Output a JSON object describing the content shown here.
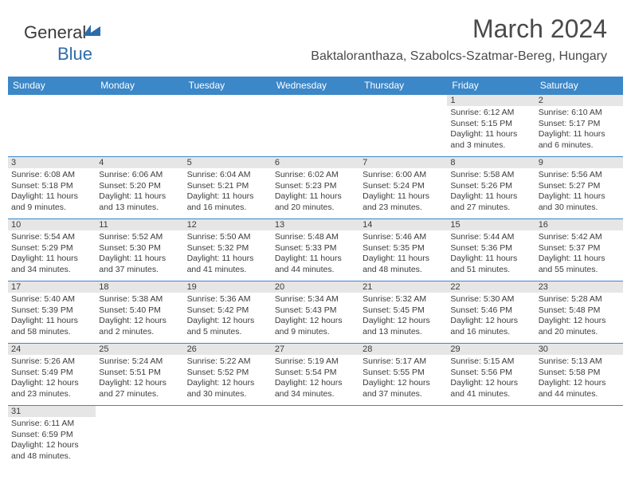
{
  "brand": {
    "part1": "General",
    "part2": "Blue"
  },
  "title": "March 2024",
  "location": "Baktaloranthaza, Szabolcs-Szatmar-Bereg, Hungary",
  "colors": {
    "header_bg": "#3b87c8",
    "header_text": "#ffffff",
    "cell_border": "#3b87c8",
    "daynum_bg": "#e6e6e6",
    "text": "#3c3c3c",
    "title_text": "#4a4a4a",
    "logo_blue": "#2d6ca8"
  },
  "typography": {
    "title_fontsize": 32,
    "location_fontsize": 16,
    "dayheader_fontsize": 12,
    "daynum_fontsize": 11,
    "body_fontsize": 10.5,
    "logo_fontsize": 22
  },
  "day_headers": [
    "Sunday",
    "Monday",
    "Tuesday",
    "Wednesday",
    "Thursday",
    "Friday",
    "Saturday"
  ],
  "weeks": [
    [
      {
        "num": "",
        "lines": []
      },
      {
        "num": "",
        "lines": []
      },
      {
        "num": "",
        "lines": []
      },
      {
        "num": "",
        "lines": []
      },
      {
        "num": "",
        "lines": []
      },
      {
        "num": "1",
        "lines": [
          "Sunrise: 6:12 AM",
          "Sunset: 5:15 PM",
          "Daylight: 11 hours and 3 minutes."
        ]
      },
      {
        "num": "2",
        "lines": [
          "Sunrise: 6:10 AM",
          "Sunset: 5:17 PM",
          "Daylight: 11 hours and 6 minutes."
        ]
      }
    ],
    [
      {
        "num": "3",
        "lines": [
          "Sunrise: 6:08 AM",
          "Sunset: 5:18 PM",
          "Daylight: 11 hours and 9 minutes."
        ]
      },
      {
        "num": "4",
        "lines": [
          "Sunrise: 6:06 AM",
          "Sunset: 5:20 PM",
          "Daylight: 11 hours and 13 minutes."
        ]
      },
      {
        "num": "5",
        "lines": [
          "Sunrise: 6:04 AM",
          "Sunset: 5:21 PM",
          "Daylight: 11 hours and 16 minutes."
        ]
      },
      {
        "num": "6",
        "lines": [
          "Sunrise: 6:02 AM",
          "Sunset: 5:23 PM",
          "Daylight: 11 hours and 20 minutes."
        ]
      },
      {
        "num": "7",
        "lines": [
          "Sunrise: 6:00 AM",
          "Sunset: 5:24 PM",
          "Daylight: 11 hours and 23 minutes."
        ]
      },
      {
        "num": "8",
        "lines": [
          "Sunrise: 5:58 AM",
          "Sunset: 5:26 PM",
          "Daylight: 11 hours and 27 minutes."
        ]
      },
      {
        "num": "9",
        "lines": [
          "Sunrise: 5:56 AM",
          "Sunset: 5:27 PM",
          "Daylight: 11 hours and 30 minutes."
        ]
      }
    ],
    [
      {
        "num": "10",
        "lines": [
          "Sunrise: 5:54 AM",
          "Sunset: 5:29 PM",
          "Daylight: 11 hours and 34 minutes."
        ]
      },
      {
        "num": "11",
        "lines": [
          "Sunrise: 5:52 AM",
          "Sunset: 5:30 PM",
          "Daylight: 11 hours and 37 minutes."
        ]
      },
      {
        "num": "12",
        "lines": [
          "Sunrise: 5:50 AM",
          "Sunset: 5:32 PM",
          "Daylight: 11 hours and 41 minutes."
        ]
      },
      {
        "num": "13",
        "lines": [
          "Sunrise: 5:48 AM",
          "Sunset: 5:33 PM",
          "Daylight: 11 hours and 44 minutes."
        ]
      },
      {
        "num": "14",
        "lines": [
          "Sunrise: 5:46 AM",
          "Sunset: 5:35 PM",
          "Daylight: 11 hours and 48 minutes."
        ]
      },
      {
        "num": "15",
        "lines": [
          "Sunrise: 5:44 AM",
          "Sunset: 5:36 PM",
          "Daylight: 11 hours and 51 minutes."
        ]
      },
      {
        "num": "16",
        "lines": [
          "Sunrise: 5:42 AM",
          "Sunset: 5:37 PM",
          "Daylight: 11 hours and 55 minutes."
        ]
      }
    ],
    [
      {
        "num": "17",
        "lines": [
          "Sunrise: 5:40 AM",
          "Sunset: 5:39 PM",
          "Daylight: 11 hours and 58 minutes."
        ]
      },
      {
        "num": "18",
        "lines": [
          "Sunrise: 5:38 AM",
          "Sunset: 5:40 PM",
          "Daylight: 12 hours and 2 minutes."
        ]
      },
      {
        "num": "19",
        "lines": [
          "Sunrise: 5:36 AM",
          "Sunset: 5:42 PM",
          "Daylight: 12 hours and 5 minutes."
        ]
      },
      {
        "num": "20",
        "lines": [
          "Sunrise: 5:34 AM",
          "Sunset: 5:43 PM",
          "Daylight: 12 hours and 9 minutes."
        ]
      },
      {
        "num": "21",
        "lines": [
          "Sunrise: 5:32 AM",
          "Sunset: 5:45 PM",
          "Daylight: 12 hours and 13 minutes."
        ]
      },
      {
        "num": "22",
        "lines": [
          "Sunrise: 5:30 AM",
          "Sunset: 5:46 PM",
          "Daylight: 12 hours and 16 minutes."
        ]
      },
      {
        "num": "23",
        "lines": [
          "Sunrise: 5:28 AM",
          "Sunset: 5:48 PM",
          "Daylight: 12 hours and 20 minutes."
        ]
      }
    ],
    [
      {
        "num": "24",
        "lines": [
          "Sunrise: 5:26 AM",
          "Sunset: 5:49 PM",
          "Daylight: 12 hours and 23 minutes."
        ]
      },
      {
        "num": "25",
        "lines": [
          "Sunrise: 5:24 AM",
          "Sunset: 5:51 PM",
          "Daylight: 12 hours and 27 minutes."
        ]
      },
      {
        "num": "26",
        "lines": [
          "Sunrise: 5:22 AM",
          "Sunset: 5:52 PM",
          "Daylight: 12 hours and 30 minutes."
        ]
      },
      {
        "num": "27",
        "lines": [
          "Sunrise: 5:19 AM",
          "Sunset: 5:54 PM",
          "Daylight: 12 hours and 34 minutes."
        ]
      },
      {
        "num": "28",
        "lines": [
          "Sunrise: 5:17 AM",
          "Sunset: 5:55 PM",
          "Daylight: 12 hours and 37 minutes."
        ]
      },
      {
        "num": "29",
        "lines": [
          "Sunrise: 5:15 AM",
          "Sunset: 5:56 PM",
          "Daylight: 12 hours and 41 minutes."
        ]
      },
      {
        "num": "30",
        "lines": [
          "Sunrise: 5:13 AM",
          "Sunset: 5:58 PM",
          "Daylight: 12 hours and 44 minutes."
        ]
      }
    ],
    [
      {
        "num": "31",
        "lines": [
          "Sunrise: 6:11 AM",
          "Sunset: 6:59 PM",
          "Daylight: 12 hours and 48 minutes."
        ]
      },
      {
        "num": "",
        "lines": []
      },
      {
        "num": "",
        "lines": []
      },
      {
        "num": "",
        "lines": []
      },
      {
        "num": "",
        "lines": []
      },
      {
        "num": "",
        "lines": []
      },
      {
        "num": "",
        "lines": []
      }
    ]
  ]
}
